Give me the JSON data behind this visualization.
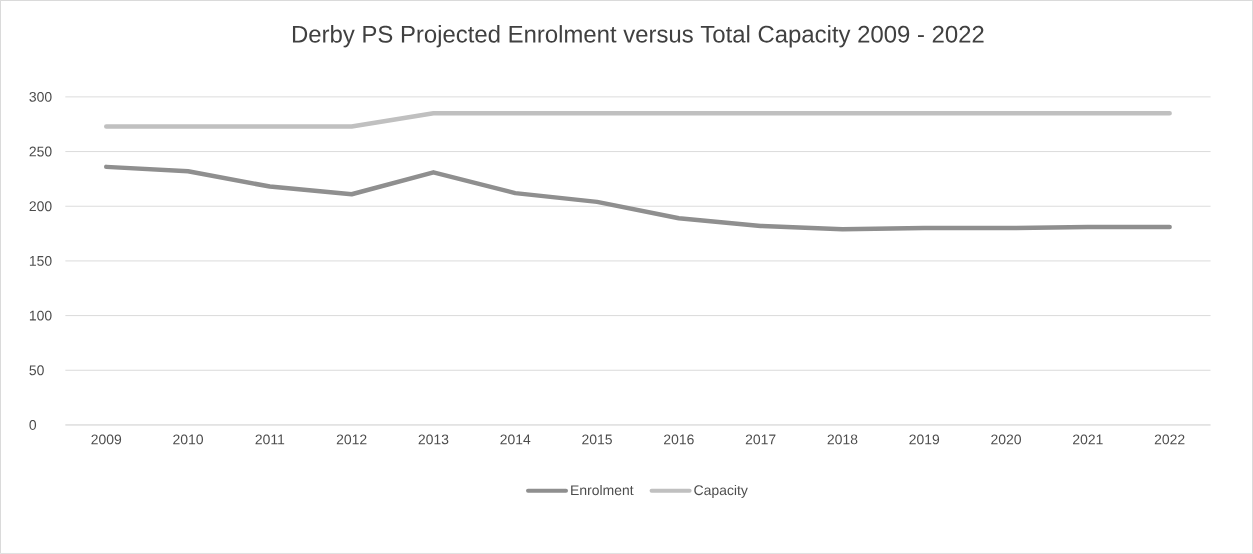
{
  "chart_data": {
    "type": "line",
    "title": "Derby PS Projected Enrolment versus Total Capacity 2009 - 2022",
    "categories": [
      "2009",
      "2010",
      "2011",
      "2012",
      "2013",
      "2014",
      "2015",
      "2016",
      "2017",
      "2018",
      "2019",
      "2020",
      "2021",
      "2022"
    ],
    "series": [
      {
        "name": "Enrolment",
        "color": "#8f8f8f",
        "values": [
          236,
          232,
          218,
          211,
          231,
          212,
          204,
          189,
          182,
          179,
          180,
          180,
          181,
          181
        ]
      },
      {
        "name": "Capacity",
        "color": "#c0c0c0",
        "values": [
          273,
          273,
          273,
          273,
          285,
          285,
          285,
          285,
          285,
          285,
          285,
          285,
          285,
          285
        ]
      }
    ],
    "ylim": [
      0,
      300
    ],
    "yticks": [
      0,
      50,
      100,
      150,
      200,
      250,
      300
    ],
    "grid": "y",
    "legend": "bottom",
    "marker": "none",
    "line_style": "solid"
  }
}
